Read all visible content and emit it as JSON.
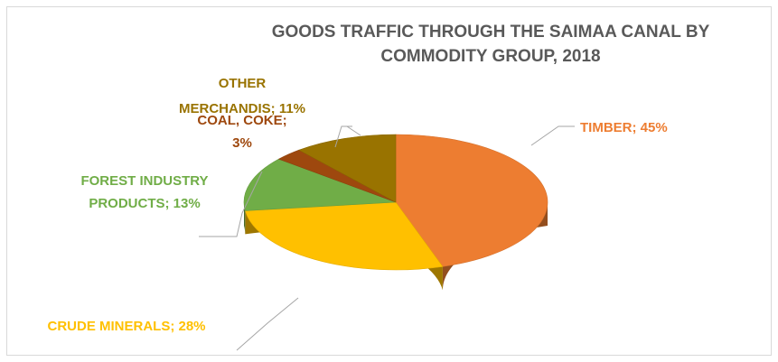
{
  "chart_data": {
    "type": "pie",
    "title_lines": [
      "GOODS TRAFFIC THROUGH THE SAIMAA CANAL BY",
      "COMMODITY GROUP, 2018"
    ],
    "slices": [
      {
        "name": "TIMBER",
        "value": 45,
        "label": "TIMBER; 45%",
        "color": "#ED7D31"
      },
      {
        "name": "CRUDE MINERALS",
        "value": 28,
        "label": "CRUDE MINERALS; 28%",
        "color": "#FFC000"
      },
      {
        "name": "FOREST INDUSTRY PRODUCTS",
        "value": 13,
        "label_lines": [
          "FOREST INDUSTRY",
          "PRODUCTS; 13%"
        ],
        "color": "#70AD47"
      },
      {
        "name": "COAL, COKE",
        "value": 3,
        "label_lines": [
          "COAL, COKE;",
          "3%"
        ],
        "color": "#9E480E"
      },
      {
        "name": "OTHER MERCHANDIS",
        "value": 11,
        "label_lines": [
          "OTHER",
          "MERCHANDIS; 11%"
        ],
        "color": "#997300"
      }
    ],
    "value_unit": "%",
    "style": "3d-pie",
    "legend": "none"
  }
}
